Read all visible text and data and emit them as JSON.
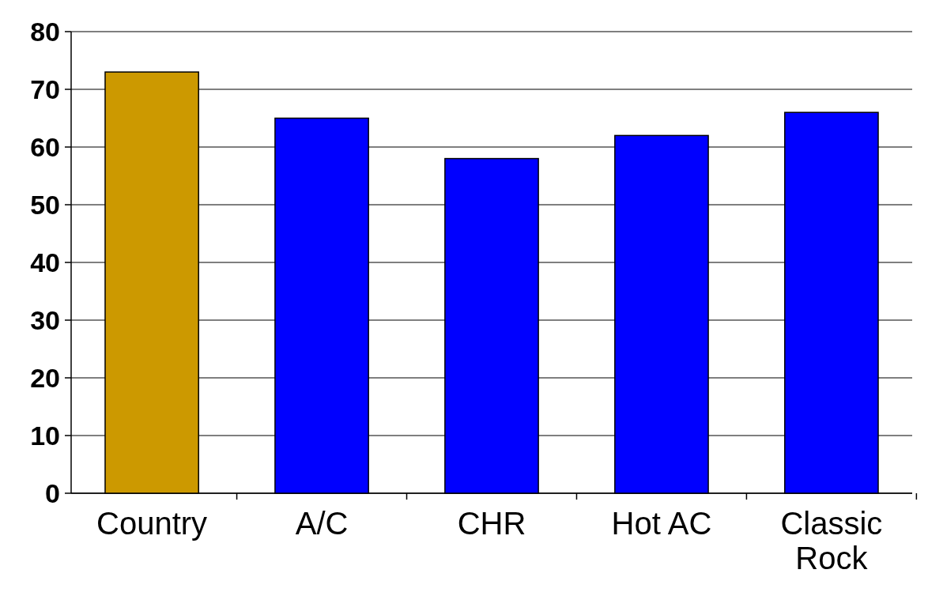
{
  "chart_data": {
    "type": "bar",
    "categories": [
      "Country",
      "A/C",
      "CHR",
      "Hot AC",
      "Classic Rock"
    ],
    "values": [
      73,
      65,
      58,
      62,
      66
    ],
    "colors": [
      "#cc9900",
      "#0000ff",
      "#0000ff",
      "#0000ff",
      "#0000ff"
    ],
    "ylim": [
      0,
      80
    ],
    "yticks": [
      0,
      10,
      20,
      30,
      40,
      50,
      60,
      70,
      80
    ],
    "grid": "y"
  }
}
